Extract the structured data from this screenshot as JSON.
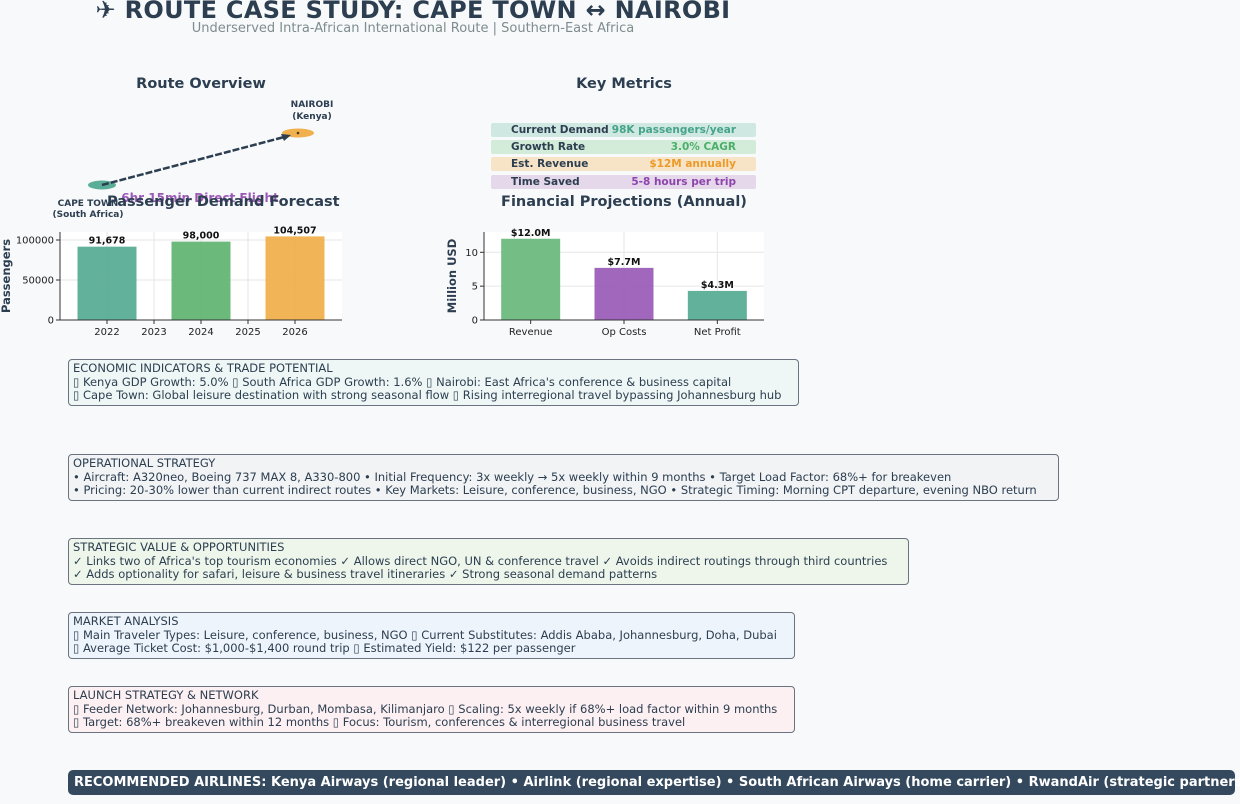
{
  "header": {
    "title": "✈ ROUTE CASE STUDY: CAPE TOWN ↔ NAIROBI",
    "subtitle": "Underserved Intra-African International Route | Southern-East Africa"
  },
  "route_overview": {
    "title": "Route Overview",
    "origin_name": "CAPE TOWN",
    "origin_country": "(South Africa)",
    "destination_name": "NAIROBI",
    "destination_country": "(Kenya)",
    "flight_label": "6hr 15min Direct Flight",
    "origin_color": "#5aad96",
    "destination_color": "#f0b04e",
    "flight_label_color": "#9b59b6"
  },
  "key_metrics": {
    "title": "Key Metrics",
    "items": [
      {
        "label": "Current Demand",
        "value": "98K passengers/year",
        "bg": "#cfe8e1",
        "color": "#45a38a"
      },
      {
        "label": "Growth Rate",
        "value": "3.0% CAGR",
        "bg": "#d3ebd9",
        "color": "#4caf6a"
      },
      {
        "label": "Est. Revenue",
        "value": "$12M annually",
        "bg": "#f7e4c6",
        "color": "#ec9a2a"
      },
      {
        "label": "Time Saved",
        "value": "5-8 hours per trip",
        "bg": "#e4d8ea",
        "color": "#8e44ad"
      }
    ]
  },
  "chart_data": [
    {
      "type": "bar",
      "title": "Passenger Demand Forecast",
      "ylabel": "Passengers",
      "xlabel": "",
      "categories": [
        "2022",
        "2024",
        "2026"
      ],
      "x": [
        2022,
        2024,
        2026
      ],
      "values": [
        91678,
        98000,
        104507
      ],
      "value_labels": [
        "91,678",
        "98,000",
        "104,507"
      ],
      "colors": [
        "#5aad96",
        "#63b574",
        "#f0b04e"
      ],
      "xlim": [
        2021,
        2027
      ],
      "xticks": [
        "2022",
        "2023",
        "2024",
        "2025",
        "2026"
      ],
      "ylim": [
        0,
        110000
      ],
      "yticks": [
        "0",
        "50000",
        "100000"
      ],
      "grid": true
    },
    {
      "type": "bar",
      "title": "Financial Projections (Annual)",
      "ylabel": "Million USD",
      "xlabel": "",
      "categories": [
        "Revenue",
        "Op Costs",
        "Net Profit"
      ],
      "values": [
        12.0,
        7.7,
        4.3
      ],
      "value_labels": [
        "$12.0M",
        "$7.7M",
        "$4.3M"
      ],
      "colors": [
        "#6dbb80",
        "#9b5fb8",
        "#5aad96"
      ],
      "ylim": [
        0,
        13
      ],
      "yticks": [
        "0",
        "5",
        "10"
      ],
      "grid": true
    }
  ],
  "sections": {
    "economic": {
      "title": "ECONOMIC INDICATORS & TRADE POTENTIAL",
      "line1": "▯ Kenya GDP Growth: 5.0%  ▯ South Africa GDP Growth: 1.6%  ▯ Nairobi: East Africa's conference & business capital",
      "line2": "▯ Cape Town: Global leisure destination with strong seasonal flow  ▯ Rising interregional travel bypassing Johannesburg hub",
      "bg": "#eef7f5"
    },
    "operational": {
      "title": "OPERATIONAL STRATEGY",
      "line1": "• Aircraft: A320neo, Boeing 737 MAX 8, A330-800  • Initial Frequency: 3x weekly → 5x weekly within 9 months  • Target Load Factor: 68%+ for breakeven",
      "line2": "• Pricing: 20-30% lower than current indirect routes  • Key Markets: Leisure, conference, business, NGO  • Strategic Timing: Morning CPT departure, evening NBO return",
      "bg": "#f1f3f5"
    },
    "strategic": {
      "title": "STRATEGIC VALUE & OPPORTUNITIES",
      "line1": "✓ Links two of Africa's top tourism economies  ✓ Allows direct NGO, UN & conference travel  ✓ Avoids indirect routings through third countries",
      "line2": "✓ Adds optionality for safari, leisure & business travel itineraries  ✓ Strong seasonal demand patterns",
      "bg": "#eef6ec"
    },
    "market": {
      "title": "MARKET ANALYSIS",
      "line1": "▯ Main Traveler Types: Leisure, conference, business, NGO  ▯ Current Substitutes: Addis Ababa, Johannesburg, Doha, Dubai",
      "line2": "▯ Average Ticket Cost: $1,000-$1,400 round trip  ▯ Estimated Yield: $122 per passenger",
      "bg": "#eef4fb"
    },
    "launch": {
      "title": "LAUNCH STRATEGY & NETWORK",
      "line1": "▯ Feeder Network: Johannesburg, Durban, Mombasa, Kilimanjaro  ▯ Scaling: 5x weekly if 68%+ load factor within 9 months",
      "line2": "▯ Target: 68%+ breakeven within 12 months  ▯ Focus: Tourism, conferences & interregional business travel",
      "bg": "#fcf0f2"
    }
  },
  "footer": {
    "text": "RECOMMENDED AIRLINES: Kenya Airways (regional leader) • Airlink (regional expertise) • South African Airways (home carrier) • RwandAir (strategic partnership)"
  }
}
